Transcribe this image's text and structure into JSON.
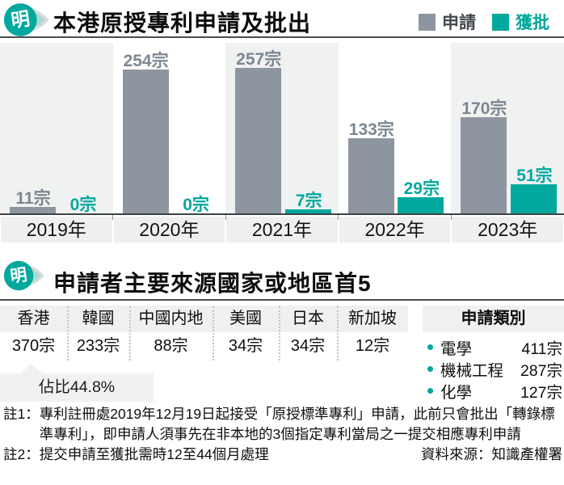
{
  "brand": {
    "logo_char": "明"
  },
  "colors": {
    "accent_teal": "#00A89D",
    "bar_gray": "#8D96A0",
    "value_label_gray": "#7B8791",
    "band_gray": "#F0F1F1",
    "panel_gray": "#F0F0F0"
  },
  "section1": {
    "title": "本港原授專利申請及批出",
    "legend": [
      {
        "label": "申請",
        "color": "#8D96A0"
      },
      {
        "label": "獲批",
        "color": "#00A89D"
      }
    ]
  },
  "chart_data": {
    "type": "bar",
    "title": "本港原授專利申請及批出",
    "categories": [
      "2019年",
      "2020年",
      "2021年",
      "2022年",
      "2023年"
    ],
    "series": [
      {
        "name": "申請",
        "color": "#8D96A0",
        "values": [
          11,
          254,
          257,
          133,
          170
        ]
      },
      {
        "name": "獲批",
        "color": "#00A89D",
        "values": [
          0,
          0,
          7,
          29,
          51
        ]
      }
    ],
    "unit_suffix": "宗",
    "data_labels": true,
    "grid": false,
    "ylim": [
      0,
      270
    ],
    "legend_position": "top-right"
  },
  "section2": {
    "title": "申請者主要來源國家或地區首5",
    "table": {
      "columns": [
        {
          "header": "香港",
          "value": "370宗"
        },
        {
          "header": "韓國",
          "value": "233宗"
        },
        {
          "header": "中國内地",
          "value": "88宗"
        },
        {
          "header": "美國",
          "value": "34宗"
        },
        {
          "header": "日本",
          "value": "34宗"
        },
        {
          "header": "新加坡",
          "value": "12宗"
        }
      ]
    },
    "callout": {
      "text": "佔比44.8%"
    },
    "categories_panel": {
      "header": "申請類別",
      "items": [
        {
          "label": "電學",
          "value": "411宗"
        },
        {
          "label": "機械工程",
          "value": "287宗"
        },
        {
          "label": "化學",
          "value": "127宗"
        }
      ]
    }
  },
  "notes": {
    "note1_label": "註1：",
    "note1_text": "專利註冊處2019年12月19日起接受「原授標準專利」申請，此前只會批出「轉錄標準專利」，即申請人須事先在非本地的3個指定專利當局之一提交相應專利申請",
    "note2_label": "註2：",
    "note2_text": "提交申請至獲批需時12至44個月處理",
    "source": "資料來源：知識產權署"
  }
}
